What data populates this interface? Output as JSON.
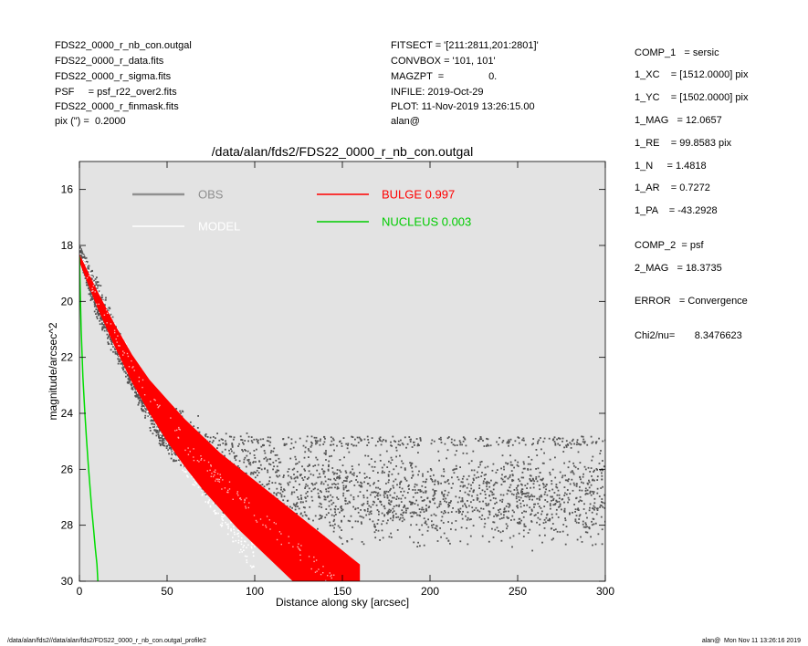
{
  "header_left": [
    "FDS22_0000_r_nb_con.outgal",
    "FDS22_0000_r_data.fits",
    "FDS22_0000_r_sigma.fits",
    "PSF     = psf_r22_over2.fits",
    "FDS22_0000_r_finmask.fits",
    "pix (\") =  0.2000"
  ],
  "header_mid": [
    "FITSECT = '[211:2811,201:2801]'",
    "CONVBOX = '101, 101'",
    "MAGZPT  =                0.",
    "INFILE: 2019-Oct-29",
    "PLOT: 11-Nov-2019 13:26:15.00",
    "alan@"
  ],
  "fit_params": [
    "COMP_1   = sersic",
    "1_XC    = [1512.0000] pix",
    "1_YC    = [1502.0000] pix",
    "1_MAG   = 12.0657",
    "1_RE    = 99.8583 pix",
    "1_N     = 1.4818",
    "1_AR    = 0.7272",
    "1_PA    = -43.2928",
    "COMP_2  = psf",
    "2_MAG   = 18.3735",
    "ERROR   = Convergence",
    "Chi2/nu=       8.3476623"
  ],
  "footer": {
    "left": "/data/alan/fds2//data/alan/fds2/FDS22_0000_r_nb_con.outgal_profile2",
    "right": "alan@  Mon Nov 11 13:26:16 2019"
  },
  "colors": {
    "plot_bg": "#e3e3e3",
    "obs": "#555555",
    "model": "#ffffff",
    "bulge": "#ff0000",
    "nucleus": "#00dd00",
    "legend_obs": "#909090",
    "legend_bulge": "#ff0000",
    "legend_nucleus": "#00cc00"
  },
  "chart_data": {
    "type": "scatter",
    "title": "/data/alan/fds2/FDS22_0000_r_nb_con.outgal",
    "xlabel": "Distance along sky [arcsec]",
    "ylabel": "magnitude/arcsec^2",
    "xlim": [
      0,
      300
    ],
    "ylim": [
      30,
      15
    ],
    "y_inverted": true,
    "xticks": [
      0,
      50,
      100,
      150,
      200,
      250,
      300
    ],
    "yticks": [
      16,
      18,
      20,
      22,
      24,
      26,
      28,
      30
    ],
    "grid": false,
    "legend": [
      {
        "label": "OBS",
        "color": "#909090"
      },
      {
        "label": "MODEL",
        "color": "#ffffff"
      },
      {
        "label": "BULGE  0.997",
        "color": "#ff0000"
      },
      {
        "label": "NUCLEUS  0.003",
        "color": "#00cc00"
      }
    ],
    "series": [
      {
        "name": "OBS",
        "kind": "scatter",
        "x": [
          0,
          5,
          10,
          15,
          20,
          25,
          30,
          35,
          40,
          45,
          50,
          55,
          60,
          65,
          70,
          75,
          80,
          90,
          100,
          120,
          150,
          200,
          250,
          300
        ],
        "y": [
          18.2,
          19.1,
          19.9,
          20.6,
          21.3,
          22.0,
          22.7,
          23.3,
          23.8,
          24.2,
          24.5,
          24.8,
          25.0,
          25.2,
          25.5,
          25.7,
          26.0,
          26.3,
          26.5,
          26.7,
          26.9,
          27.0,
          27.0,
          27.0
        ],
        "y_spread": [
          0.3,
          0.6,
          0.8,
          0.8,
          0.7,
          0.6,
          0.6,
          0.7,
          0.8,
          0.9,
          1.0,
          1.1,
          1.2,
          1.3,
          1.4,
          1.5,
          1.6,
          1.7,
          1.8,
          1.9,
          2.0,
          2.0,
          2.0,
          2.0
        ],
        "sky_floor": 25.0
      },
      {
        "name": "MODEL",
        "kind": "scatter",
        "x": [
          0,
          10,
          20,
          30,
          40,
          50,
          60,
          70,
          80,
          90,
          100
        ],
        "y": [
          18.3,
          19.8,
          21.2,
          22.4,
          23.5,
          24.5,
          25.3,
          26.1,
          26.9,
          27.7,
          28.6
        ]
      },
      {
        "name": "BULGE",
        "kind": "band",
        "x": [
          0,
          10,
          20,
          30,
          40,
          50,
          60,
          70,
          80,
          90,
          100,
          110,
          120,
          130,
          140,
          150,
          160
        ],
        "y_upper": [
          18.3,
          19.6,
          20.8,
          21.9,
          22.8,
          23.5,
          24.2,
          24.8,
          25.4,
          25.9,
          26.4,
          26.9,
          27.4,
          27.9,
          28.4,
          28.9,
          29.4
        ],
        "y_lower": [
          18.6,
          20.2,
          21.6,
          22.9,
          24.0,
          25.0,
          25.9,
          26.7,
          27.4,
          28.1,
          28.7,
          29.3,
          29.9,
          30.5,
          31.1,
          31.7,
          32.3
        ]
      },
      {
        "name": "NUCLEUS",
        "kind": "line",
        "x": [
          0,
          0.5,
          1,
          1.5,
          2,
          3,
          4,
          5,
          6,
          7,
          8,
          9,
          10,
          10.5
        ],
        "y": [
          18.4,
          19.8,
          21.0,
          21.9,
          22.7,
          23.9,
          24.9,
          25.8,
          26.6,
          27.4,
          28.1,
          28.8,
          29.4,
          30.0
        ]
      }
    ]
  }
}
